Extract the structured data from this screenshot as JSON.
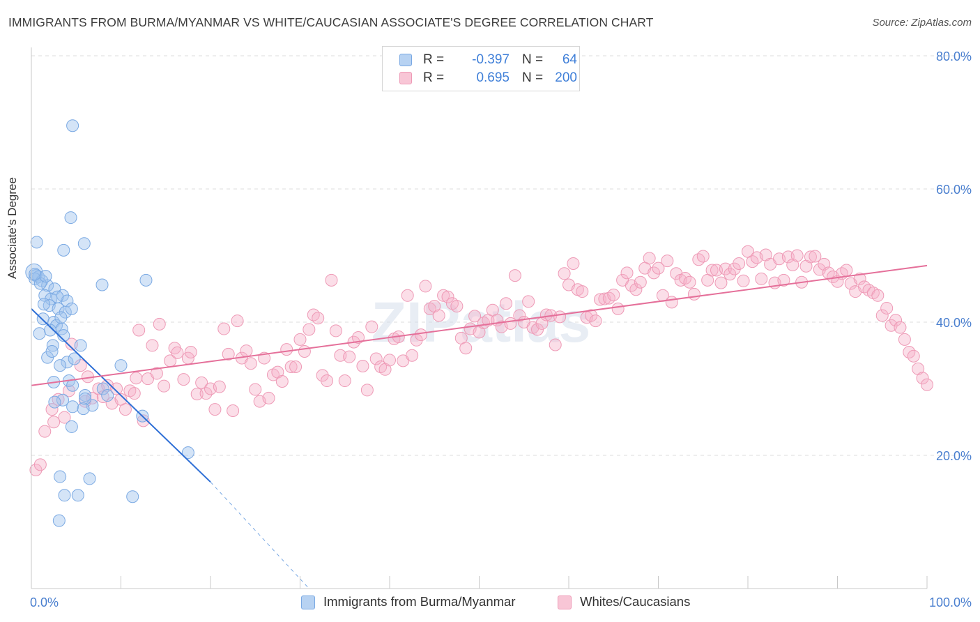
{
  "title": "IMMIGRANTS FROM BURMA/MYANMAR VS WHITE/CAUCASIAN ASSOCIATE'S DEGREE CORRELATION CHART",
  "source": "Source: ZipAtlas.com",
  "watermark": "ZIPatlas",
  "legend": {
    "rows": [
      {
        "r_label": "R =",
        "r_value": "-0.397",
        "n_label": "N =",
        "n_value": "64",
        "color": "#7aa9e3"
      },
      {
        "r_label": "R =",
        "r_value": "0.695",
        "n_label": "N =",
        "n_value": "200",
        "color": "#ee9ab6"
      }
    ]
  },
  "bottom_legend": [
    "Immigrants from Burma/Myanmar",
    "Whites/Caucasians"
  ],
  "chart_data": {
    "type": "scatter",
    "title": "IMMIGRANTS FROM BURMA/MYANMAR VS WHITE/CAUCASIAN ASSOCIATE'S DEGREE CORRELATION CHART",
    "xlabel": "",
    "ylabel": "Associate's Degree",
    "xlim": [
      0,
      100
    ],
    "ylim": [
      0,
      80
    ],
    "x_tick_labels": [
      "0.0%",
      "100.0%"
    ],
    "y_ticks": [
      20,
      40,
      60,
      80
    ],
    "y_tick_labels": [
      "20.0%",
      "40.0%",
      "60.0%",
      "80.0%"
    ],
    "grid": true,
    "legend_position": "top-center",
    "series": [
      {
        "name": "Immigrants from Burma/Myanmar",
        "color": "#7aa9e3",
        "trend": {
          "x": [
            0,
            20
          ],
          "y": [
            42,
            16
          ],
          "dashed_to": [
            31,
            0
          ]
        },
        "points": [
          [
            0.3,
            47.5
          ],
          [
            0.5,
            47.0
          ],
          [
            0.8,
            46.8
          ],
          [
            0.4,
            46.5
          ],
          [
            1.2,
            46.2
          ],
          [
            1.8,
            45.5
          ],
          [
            1.0,
            45.8
          ],
          [
            2.6,
            45.0
          ],
          [
            0.6,
            52.0
          ],
          [
            1.5,
            44.0
          ],
          [
            2.2,
            43.5
          ],
          [
            3.5,
            44.0
          ],
          [
            4.0,
            43.2
          ],
          [
            2.0,
            42.5
          ],
          [
            3.0,
            42.0
          ],
          [
            3.8,
            41.5
          ],
          [
            1.3,
            40.5
          ],
          [
            2.5,
            40.0
          ],
          [
            2.8,
            39.5
          ],
          [
            3.4,
            39.0
          ],
          [
            2.1,
            38.8
          ],
          [
            0.9,
            38.3
          ],
          [
            3.6,
            38.0
          ],
          [
            4.5,
            42.0
          ],
          [
            2.4,
            36.5
          ],
          [
            5.5,
            36.5
          ],
          [
            1.8,
            34.7
          ],
          [
            4.0,
            34.0
          ],
          [
            4.8,
            34.5
          ],
          [
            2.3,
            35.6
          ],
          [
            3.2,
            33.5
          ],
          [
            10.0,
            33.5
          ],
          [
            2.5,
            31.0
          ],
          [
            4.2,
            31.2
          ],
          [
            4.6,
            30.5
          ],
          [
            6.0,
            29.0
          ],
          [
            8.0,
            30.0
          ],
          [
            8.5,
            29.0
          ],
          [
            3.5,
            28.3
          ],
          [
            2.6,
            28.0
          ],
          [
            4.6,
            27.3
          ],
          [
            6.8,
            27.5
          ],
          [
            6.0,
            28.5
          ],
          [
            12.4,
            25.9
          ],
          [
            4.5,
            24.3
          ],
          [
            17.5,
            20.4
          ],
          [
            3.2,
            16.8
          ],
          [
            6.5,
            16.5
          ],
          [
            3.7,
            14.0
          ],
          [
            5.2,
            14.0
          ],
          [
            11.3,
            13.8
          ],
          [
            3.1,
            10.2
          ],
          [
            4.6,
            69.5
          ],
          [
            4.4,
            55.7
          ],
          [
            5.9,
            51.8
          ],
          [
            3.6,
            50.8
          ],
          [
            7.9,
            45.6
          ],
          [
            12.8,
            46.3
          ],
          [
            0.4,
            47.2
          ],
          [
            1.6,
            46.9
          ],
          [
            2.9,
            43.8
          ],
          [
            3.3,
            40.7
          ],
          [
            1.4,
            42.7
          ],
          [
            5.8,
            27.0
          ]
        ]
      },
      {
        "name": "Whites/Caucasians",
        "color": "#ee9ab6",
        "trend": {
          "x": [
            0,
            100
          ],
          "y": [
            30.5,
            48.5
          ]
        },
        "points": [
          [
            0.5,
            17.8
          ],
          [
            1.0,
            18.6
          ],
          [
            1.5,
            23.6
          ],
          [
            2.3,
            26.9
          ],
          [
            2.5,
            25.0
          ],
          [
            3.0,
            28.4
          ],
          [
            3.7,
            25.7
          ],
          [
            4.2,
            29.7
          ],
          [
            4.5,
            36.7
          ],
          [
            5.5,
            33.5
          ],
          [
            6.0,
            28.1
          ],
          [
            6.3,
            31.8
          ],
          [
            6.8,
            28.6
          ],
          [
            7.5,
            30.0
          ],
          [
            8.0,
            28.8
          ],
          [
            8.5,
            30.5
          ],
          [
            9.0,
            27.8
          ],
          [
            9.5,
            30.0
          ],
          [
            10.0,
            28.4
          ],
          [
            10.5,
            26.9
          ],
          [
            11.0,
            29.7
          ],
          [
            11.5,
            29.3
          ],
          [
            11.7,
            31.6
          ],
          [
            12.0,
            38.8
          ],
          [
            12.5,
            25.2
          ],
          [
            13.0,
            31.5
          ],
          [
            13.5,
            36.5
          ],
          [
            14.0,
            32.3
          ],
          [
            14.3,
            39.7
          ],
          [
            14.8,
            30.4
          ],
          [
            15.5,
            34.2
          ],
          [
            16.0,
            36.1
          ],
          [
            16.3,
            35.4
          ],
          [
            17.0,
            31.4
          ],
          [
            17.5,
            34.6
          ],
          [
            17.8,
            35.5
          ],
          [
            18.5,
            29.2
          ],
          [
            19.0,
            30.9
          ],
          [
            19.5,
            29.3
          ],
          [
            20.0,
            30.0
          ],
          [
            20.5,
            26.9
          ],
          [
            21.0,
            30.3
          ],
          [
            21.5,
            39.0
          ],
          [
            22.0,
            35.2
          ],
          [
            22.5,
            26.7
          ],
          [
            23.0,
            40.2
          ],
          [
            23.5,
            34.6
          ],
          [
            24.0,
            35.7
          ],
          [
            24.5,
            33.8
          ],
          [
            25.0,
            29.9
          ],
          [
            25.5,
            28.1
          ],
          [
            26.0,
            34.6
          ],
          [
            26.5,
            28.6
          ],
          [
            27.0,
            32.1
          ],
          [
            27.5,
            32.5
          ],
          [
            28.0,
            31.1
          ],
          [
            28.5,
            35.9
          ],
          [
            29.0,
            33.3
          ],
          [
            29.5,
            33.3
          ],
          [
            30.0,
            37.4
          ],
          [
            30.5,
            35.6
          ],
          [
            31.0,
            38.9
          ],
          [
            31.5,
            41.1
          ],
          [
            32.0,
            40.6
          ],
          [
            32.5,
            32.0
          ],
          [
            33.0,
            31.2
          ],
          [
            33.5,
            46.3
          ],
          [
            34.0,
            38.7
          ],
          [
            34.5,
            35.0
          ],
          [
            35.0,
            31.2
          ],
          [
            35.5,
            34.8
          ],
          [
            36.0,
            37.0
          ],
          [
            36.5,
            37.7
          ],
          [
            37.0,
            33.4
          ],
          [
            37.5,
            29.8
          ],
          [
            38.0,
            39.3
          ],
          [
            38.5,
            34.5
          ],
          [
            39.0,
            33.3
          ],
          [
            39.5,
            32.9
          ],
          [
            40.0,
            34.3
          ],
          [
            40.5,
            37.5
          ],
          [
            41.0,
            37.8
          ],
          [
            41.5,
            34.2
          ],
          [
            42.0,
            44.0
          ],
          [
            42.5,
            35.0
          ],
          [
            43.0,
            37.3
          ],
          [
            43.5,
            38.1
          ],
          [
            44.0,
            45.4
          ],
          [
            44.5,
            42.0
          ],
          [
            45.0,
            42.4
          ],
          [
            45.5,
            41.0
          ],
          [
            46.0,
            44.0
          ],
          [
            46.5,
            43.8
          ],
          [
            47.0,
            42.8
          ],
          [
            47.5,
            42.4
          ],
          [
            48.0,
            37.6
          ],
          [
            48.5,
            36.1
          ],
          [
            49.0,
            39.0
          ],
          [
            49.5,
            40.9
          ],
          [
            50.0,
            38.5
          ],
          [
            50.5,
            39.9
          ],
          [
            51.0,
            40.3
          ],
          [
            51.5,
            41.8
          ],
          [
            52.0,
            40.3
          ],
          [
            52.5,
            39.3
          ],
          [
            53.0,
            42.8
          ],
          [
            53.5,
            39.8
          ],
          [
            54.0,
            47.0
          ],
          [
            54.5,
            41.0
          ],
          [
            55.0,
            40.0
          ],
          [
            55.5,
            43.1
          ],
          [
            56.0,
            39.2
          ],
          [
            56.5,
            38.9
          ],
          [
            57.0,
            39.8
          ],
          [
            57.5,
            41.1
          ],
          [
            58.0,
            41.0
          ],
          [
            58.5,
            36.6
          ],
          [
            59.0,
            40.8
          ],
          [
            59.5,
            47.3
          ],
          [
            60.0,
            45.6
          ],
          [
            60.5,
            48.8
          ],
          [
            61.0,
            44.9
          ],
          [
            61.5,
            44.6
          ],
          [
            62.0,
            40.7
          ],
          [
            62.5,
            41.0
          ],
          [
            63.0,
            40.2
          ],
          [
            63.5,
            43.4
          ],
          [
            64.0,
            43.5
          ],
          [
            64.5,
            43.6
          ],
          [
            65.0,
            44.1
          ],
          [
            65.5,
            42.0
          ],
          [
            66.0,
            46.3
          ],
          [
            66.5,
            47.4
          ],
          [
            67.0,
            45.5
          ],
          [
            67.5,
            44.9
          ],
          [
            68.0,
            46.0
          ],
          [
            68.5,
            48.1
          ],
          [
            69.0,
            49.6
          ],
          [
            69.5,
            47.4
          ],
          [
            70.0,
            48.1
          ],
          [
            70.5,
            44.0
          ],
          [
            71.0,
            49.2
          ],
          [
            71.5,
            43.0
          ],
          [
            72.0,
            47.3
          ],
          [
            72.5,
            46.3
          ],
          [
            73.0,
            46.6
          ],
          [
            73.5,
            46.0
          ],
          [
            74.0,
            44.2
          ],
          [
            74.5,
            49.4
          ],
          [
            75.0,
            49.9
          ],
          [
            75.5,
            46.3
          ],
          [
            76.0,
            47.8
          ],
          [
            76.5,
            47.8
          ],
          [
            77.0,
            45.9
          ],
          [
            77.5,
            48.0
          ],
          [
            78.0,
            47.2
          ],
          [
            78.5,
            48.0
          ],
          [
            79.0,
            48.8
          ],
          [
            79.5,
            46.2
          ],
          [
            80.0,
            50.6
          ],
          [
            80.5,
            49.1
          ],
          [
            81.0,
            49.7
          ],
          [
            81.5,
            46.5
          ],
          [
            82.0,
            50.1
          ],
          [
            82.5,
            48.7
          ],
          [
            83.0,
            45.9
          ],
          [
            83.5,
            49.5
          ],
          [
            84.0,
            46.3
          ],
          [
            84.5,
            49.8
          ],
          [
            85.0,
            48.6
          ],
          [
            85.5,
            50.0
          ],
          [
            86.0,
            46.0
          ],
          [
            86.5,
            48.4
          ],
          [
            87.0,
            49.8
          ],
          [
            87.5,
            49.9
          ],
          [
            88.0,
            47.9
          ],
          [
            88.5,
            48.7
          ],
          [
            89.0,
            47.4
          ],
          [
            89.5,
            46.8
          ],
          [
            90.0,
            46.1
          ],
          [
            90.5,
            47.3
          ],
          [
            91.0,
            47.8
          ],
          [
            91.5,
            45.8
          ],
          [
            92.0,
            44.6
          ],
          [
            92.5,
            46.5
          ],
          [
            93.0,
            45.3
          ],
          [
            93.5,
            44.8
          ],
          [
            94.0,
            44.4
          ],
          [
            94.5,
            44.0
          ],
          [
            95.0,
            41.0
          ],
          [
            95.5,
            42.1
          ],
          [
            96.0,
            39.5
          ],
          [
            96.5,
            40.3
          ],
          [
            97.0,
            39.2
          ],
          [
            97.5,
            37.4
          ],
          [
            98.0,
            35.5
          ],
          [
            98.5,
            34.9
          ],
          [
            99.0,
            33.0
          ],
          [
            99.5,
            31.6
          ],
          [
            100.0,
            30.6
          ]
        ]
      }
    ]
  }
}
